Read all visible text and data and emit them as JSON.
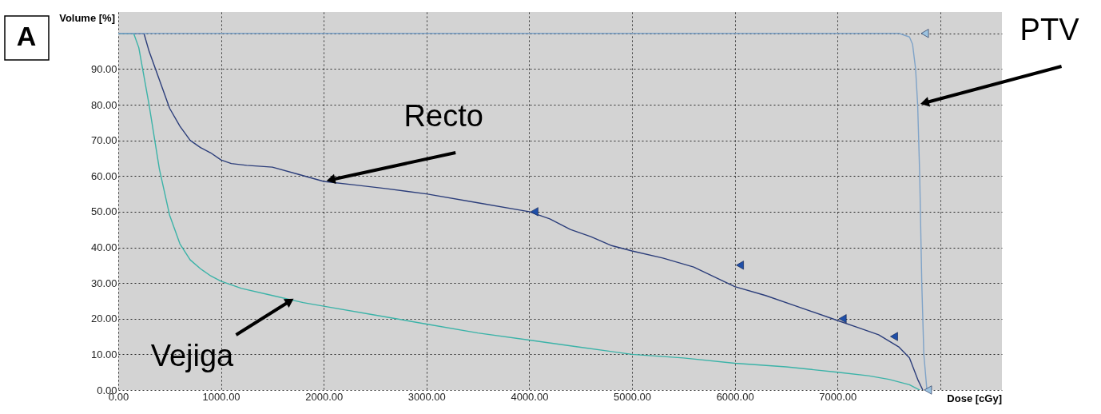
{
  "chart_data": {
    "type": "line",
    "xlabel": "Dose [cGy]",
    "ylabel": "Volume [%]",
    "xlim": [
      0,
      8600
    ],
    "ylim": [
      0,
      106
    ],
    "xticks": [
      {
        "value": 0,
        "label": "0.00"
      },
      {
        "value": 1000,
        "label": "1000.00"
      },
      {
        "value": 2000,
        "label": "2000.00"
      },
      {
        "value": 3000,
        "label": "3000.00"
      },
      {
        "value": 4000,
        "label": "4000.00"
      },
      {
        "value": 5000,
        "label": "5000.00"
      },
      {
        "value": 6000,
        "label": "6000.00"
      },
      {
        "value": 7000,
        "label": "7000.00"
      },
      {
        "value": 8000,
        "label": null
      }
    ],
    "yticks": [
      {
        "value": 0,
        "label": "0.00"
      },
      {
        "value": 10,
        "label": "10.00"
      },
      {
        "value": 20,
        "label": "20.00"
      },
      {
        "value": 30,
        "label": "30.00"
      },
      {
        "value": 40,
        "label": "40.00"
      },
      {
        "value": 50,
        "label": "50.00"
      },
      {
        "value": 60,
        "label": "60.00"
      },
      {
        "value": 70,
        "label": "70.00"
      },
      {
        "value": 80,
        "label": "80.00"
      },
      {
        "value": 90,
        "label": "90.00"
      },
      {
        "value": 100,
        "label": null
      }
    ],
    "grid": true,
    "line_style": "solid",
    "series": [
      {
        "color": "#2b3d7a",
        "x": [
          0,
          250,
          300,
          400,
          500,
          600,
          700,
          800,
          900,
          1000,
          1100,
          1250,
          1500,
          1750,
          2000,
          2300,
          2600,
          3000,
          3500,
          4000,
          4200,
          4400,
          4600,
          4800,
          5000,
          5300,
          5600,
          6000,
          6300,
          6600,
          7000,
          7200,
          7400,
          7600,
          7700,
          7780,
          7830
        ],
        "values": [
          100,
          100,
          95,
          87,
          79,
          74,
          70,
          68,
          66.5,
          64.5,
          63.5,
          63,
          62.5,
          60.5,
          58.5,
          57.5,
          56.5,
          55,
          52.5,
          50,
          48,
          45,
          43,
          40.5,
          39,
          37,
          34.5,
          29,
          26.5,
          23.5,
          19.5,
          17.5,
          15.5,
          12,
          9,
          3,
          0
        ]
      },
      {
        "color": "#3bb3a8",
        "x": [
          0,
          150,
          200,
          300,
          400,
          500,
          600,
          700,
          800,
          900,
          1000,
          1200,
          1500,
          1800,
          2000,
          2500,
          3000,
          3500,
          4000,
          4500,
          5000,
          5500,
          6000,
          6500,
          7000,
          7300,
          7500,
          7700,
          7800
        ],
        "values": [
          100,
          100,
          96,
          80,
          62,
          49,
          41,
          36.5,
          34,
          32,
          30.5,
          28.5,
          26.5,
          24.5,
          23.5,
          21,
          18.5,
          16,
          14,
          12,
          10,
          9,
          7.5,
          6.5,
          5,
          4,
          3,
          1.5,
          0
        ]
      },
      {
        "color": "#7fa3c8",
        "x": [
          0,
          7600,
          7700,
          7730,
          7760,
          7780,
          7800,
          7820,
          7840,
          7870
        ],
        "values": [
          100,
          100,
          99,
          97,
          90,
          80,
          60,
          30,
          10,
          0
        ]
      },
      {
        "type": "scatter",
        "marker": "triangle",
        "color": "#1f4fa8",
        "x": [
          4050,
          6050,
          7050,
          7550
        ],
        "values": [
          50,
          35,
          20,
          15
        ]
      },
      {
        "type": "scatter",
        "marker": "triangle",
        "color": "#9cc3e0",
        "x": [
          7850,
          7880
        ],
        "values": [
          100,
          0
        ]
      }
    ],
    "annotations": [
      "A",
      {
        "text": "Recto",
        "x": 2000,
        "y": 58.5
      },
      {
        "text": "Vejiga",
        "x": 1730,
        "y": 26
      },
      {
        "text": "PTV",
        "x": 7780,
        "y": 80
      }
    ]
  }
}
